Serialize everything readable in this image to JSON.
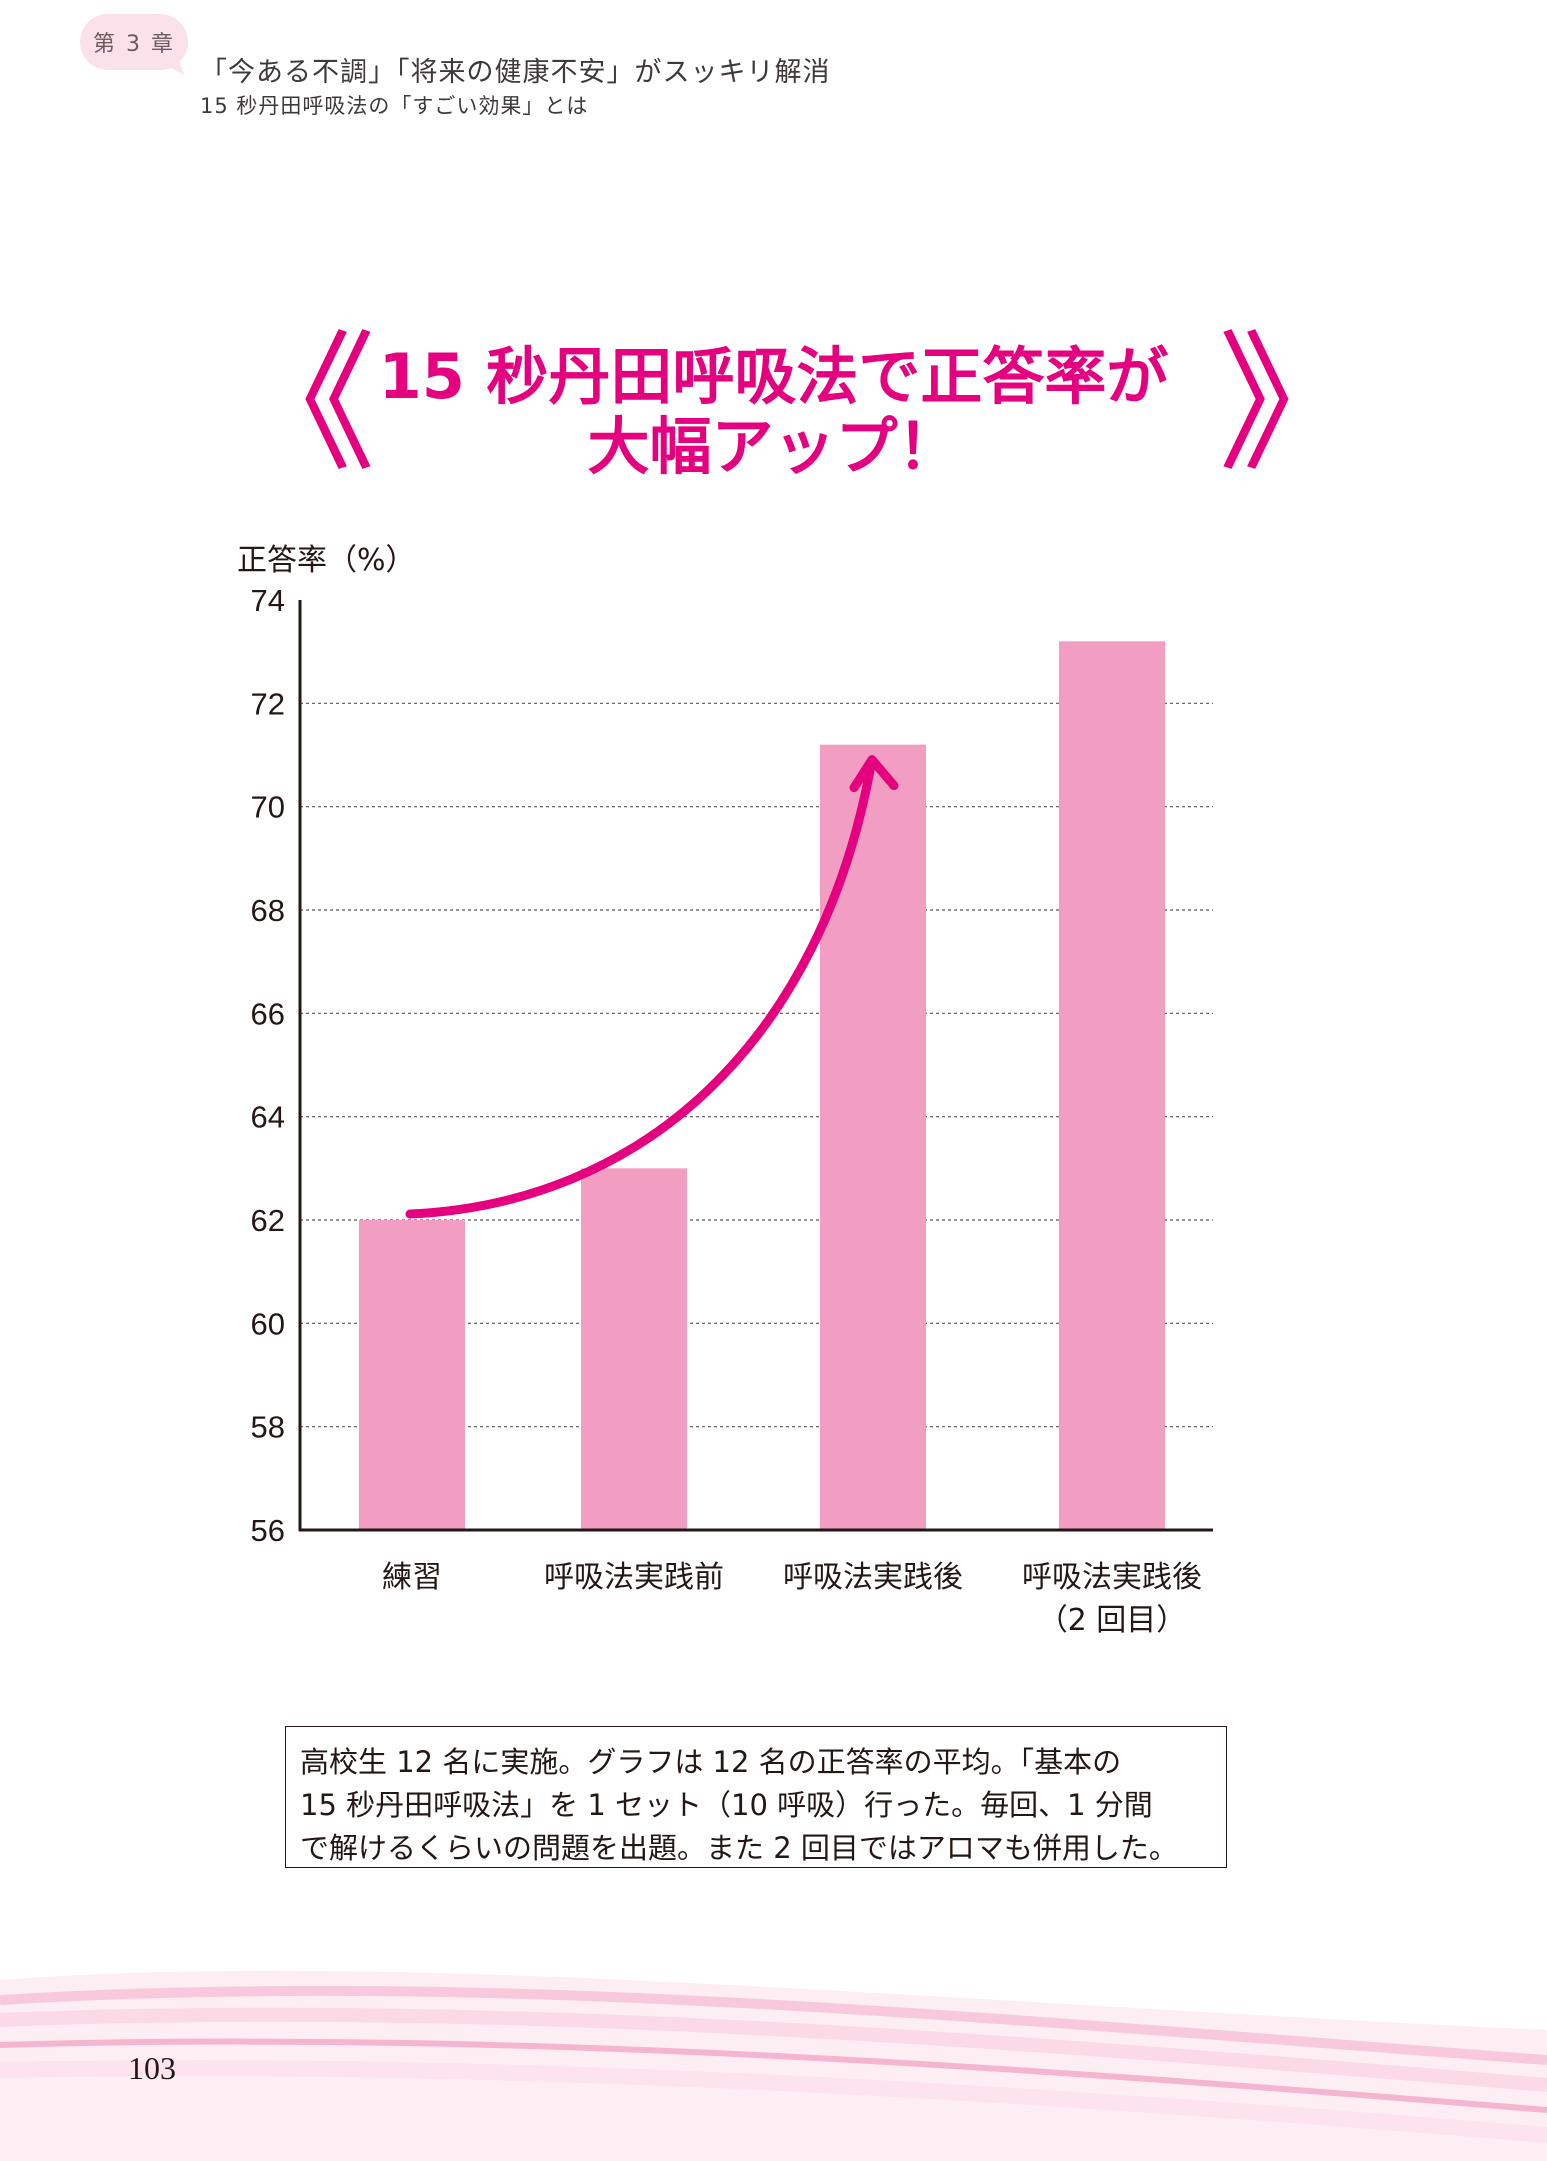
{
  "header": {
    "chapter_badge": "第 3 章",
    "title": "「今ある不調」「将来の健康不安」がスッキリ解消",
    "subtitle": "15 秒丹田呼吸法の「すごい効果」とは"
  },
  "headline": {
    "left_bracket": "《",
    "line1": "15 秒丹田呼吸法で正答率が",
    "line2": "大幅アップ！",
    "right_bracket": "》"
  },
  "colors": {
    "accent": "#e4007f",
    "bar": "#f19ec2",
    "badge": "#fbe1ea"
  },
  "chart_data": {
    "type": "bar",
    "title": "15 秒丹田呼吸法で正答率が大幅アップ！",
    "ylabel": "正答率（%）",
    "xlabel": "",
    "ylim": [
      56,
      74
    ],
    "yticks": [
      "74",
      "72",
      "70",
      "68",
      "66",
      "64",
      "62",
      "60",
      "58",
      "56"
    ],
    "grid": true,
    "categories": [
      [
        "練習"
      ],
      [
        "呼吸法実践前"
      ],
      [
        "呼吸法実践後"
      ],
      [
        "呼吸法実践後",
        "（2 回目）"
      ]
    ],
    "values": [
      62,
      63,
      71.2,
      73.2
    ],
    "annotations": [
      {
        "type": "arrow",
        "from_category": 0,
        "to_category": 2,
        "direction": "upward trend"
      }
    ]
  },
  "note": {
    "lines": [
      "高校生 12 名に実施。グラフは 12 名の正答率の平均。「基本の",
      "15 秒丹田呼吸法」を 1 セット（10 呼吸）行った。毎回、1 分間",
      "で解けるくらいの問題を出題。また 2 回目ではアロマも併用した。"
    ]
  },
  "page_number": "103"
}
